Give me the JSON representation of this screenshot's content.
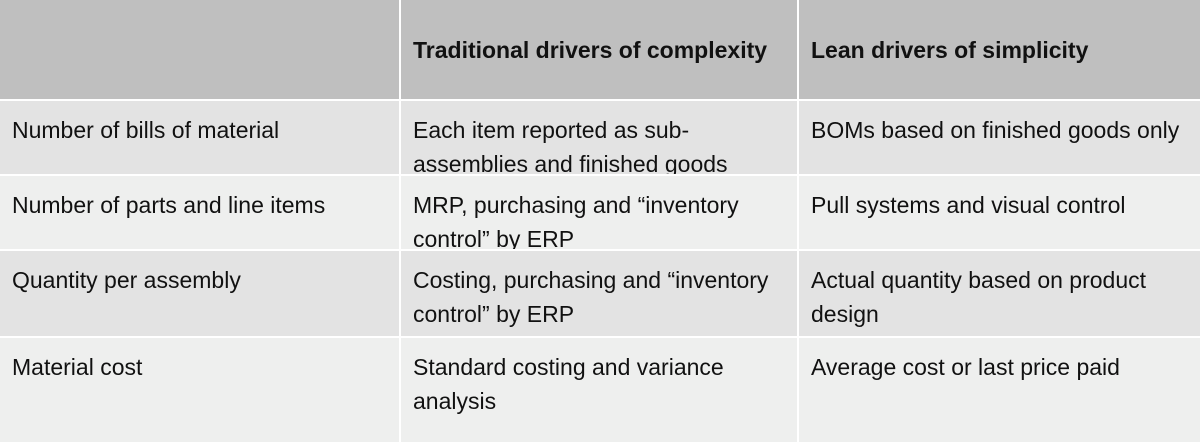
{
  "table": {
    "headers": [
      "",
      "Traditional drivers of complexity",
      "Lean drivers of simplicity"
    ],
    "rows": [
      [
        "Number of bills of material",
        "Each item reported as sub-assemblies and finished goods",
        "BOMs based on finished goods only"
      ],
      [
        "Number of parts and line items",
        "MRP, purchasing and “inventory control” by ERP",
        "Pull systems and visual control"
      ],
      [
        "Quantity per assembly",
        "Costing, purchasing and “inventory control” by ERP",
        "Actual quantity based on product design"
      ],
      [
        "Material cost",
        "Standard costing and variance analysis",
        "Average cost or last price paid"
      ]
    ]
  },
  "colors": {
    "header_bg": "#bfbfbf",
    "row_dark": "#e3e3e3",
    "row_light": "#eeefee",
    "text": "#111111"
  }
}
